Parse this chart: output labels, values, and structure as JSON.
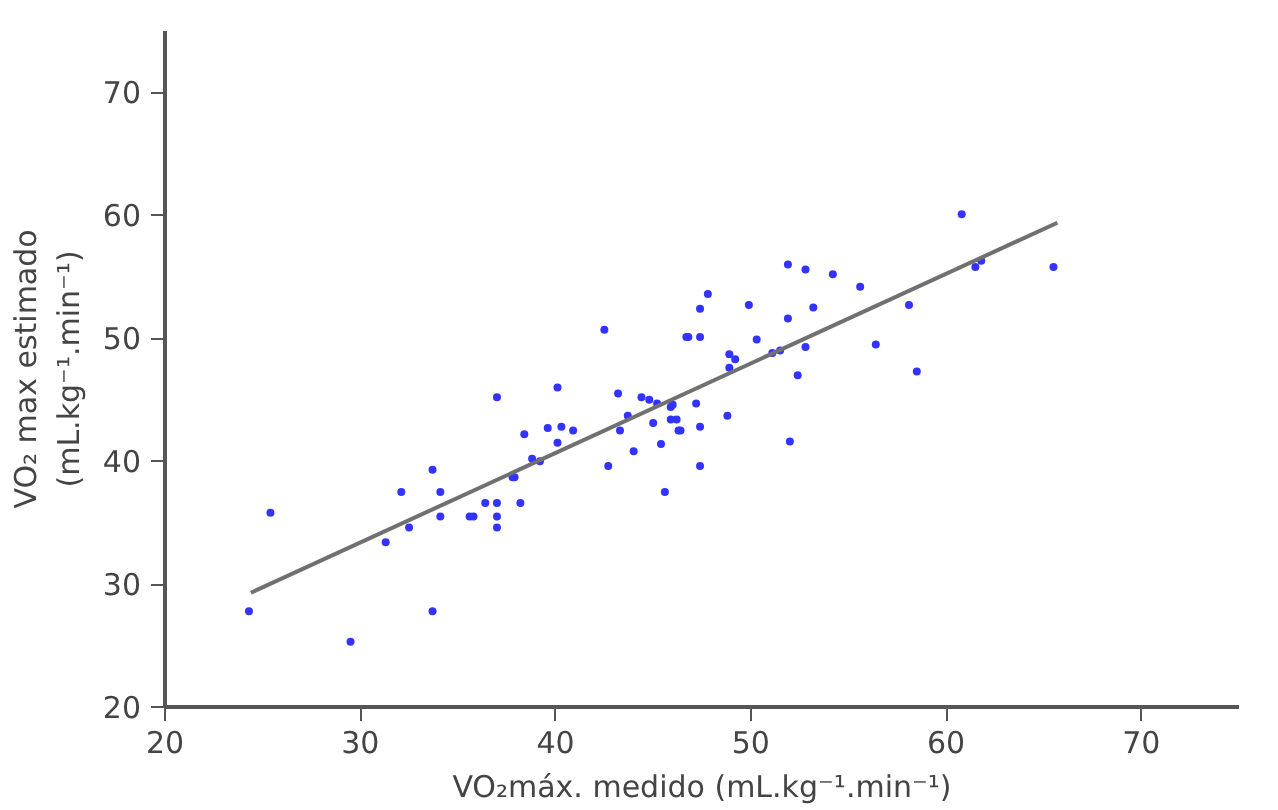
{
  "chart_data": {
    "type": "scatter",
    "xlabel": "VO₂máx. medido (mL.kg⁻¹.min⁻¹)",
    "ylabel": "VO₂ max estimado\n(mL.kg⁻¹.min⁻¹)",
    "xlim": [
      20,
      75
    ],
    "ylim": [
      20,
      75
    ],
    "xticks": [
      20,
      30,
      40,
      50,
      60,
      70
    ],
    "yticks": [
      20,
      30,
      40,
      50,
      60,
      70
    ],
    "grid": false,
    "series": [
      {
        "marker": "circle",
        "color": "#3333ff",
        "x": [
          24.3,
          25.4,
          29.5,
          31.3,
          32.1,
          32.5,
          33.7,
          33.7,
          34.1,
          34.1,
          35.6,
          35.8,
          36.4,
          37.0,
          37.0,
          37.0,
          37.0,
          37.8,
          37.9,
          38.2,
          38.4,
          38.8,
          39.2,
          39.6,
          40.1,
          40.1,
          40.3,
          40.9,
          42.5,
          42.7,
          43.2,
          43.3,
          43.7,
          44.0,
          44.4,
          44.8,
          45.0,
          45.2,
          45.4,
          45.6,
          46.0,
          46.2,
          46.3,
          46.7,
          60.8,
          51.9,
          52.8,
          54.2,
          55.6,
          61.5,
          61.8,
          65.5,
          47.8,
          47.4,
          49.9,
          53.2,
          58.1,
          51.9,
          46.8,
          47.4,
          50.3,
          48.9,
          49.2,
          51.1,
          51.5,
          52.8,
          56.4,
          48.9,
          52.4,
          58.5,
          45.9,
          47.2,
          45.9,
          46.4,
          47.4,
          48.8,
          47.4,
          52.0
        ],
        "values": [
          27.8,
          35.8,
          25.3,
          33.4,
          37.5,
          34.6,
          39.3,
          27.8,
          37.5,
          35.5,
          35.5,
          35.5,
          36.6,
          45.2,
          36.6,
          35.5,
          34.6,
          38.7,
          38.7,
          36.6,
          42.2,
          40.2,
          40.0,
          42.7,
          46.0,
          41.5,
          42.8,
          42.5,
          50.7,
          39.6,
          45.5,
          42.5,
          43.7,
          40.8,
          45.2,
          45.0,
          43.1,
          44.7,
          41.4,
          37.5,
          44.6,
          43.4,
          42.5,
          50.1,
          60.1,
          56.0,
          55.6,
          55.2,
          54.2,
          55.8,
          56.3,
          55.8,
          53.6,
          52.4,
          52.7,
          52.5,
          52.7,
          51.6,
          50.1,
          50.1,
          49.9,
          48.7,
          48.3,
          48.8,
          49.0,
          49.3,
          49.5,
          47.6,
          47.0,
          47.3,
          44.4,
          44.7,
          43.4,
          42.5,
          42.8,
          43.7,
          39.6,
          41.6
        ]
      },
      {
        "type": "line",
        "color": "#707070",
        "x": [
          24.4,
          65.7
        ],
        "values": [
          29.3,
          59.4
        ]
      }
    ]
  }
}
